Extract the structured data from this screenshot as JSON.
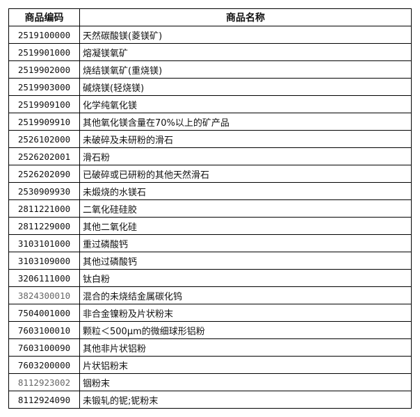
{
  "headers": [
    "商品编码",
    "商品名称"
  ],
  "rows": [
    {
      "code": "2519100000",
      "name": "天然碳酸镁(菱镁矿)"
    },
    {
      "code": "2519901000",
      "name": "熔凝镁氧矿"
    },
    {
      "code": "2519902000",
      "name": "烧结镁氧矿(重烧镁)"
    },
    {
      "code": "2519903000",
      "name": "碱烧镁(轻烧镁)"
    },
    {
      "code": "2519909100",
      "name": "化学纯氧化镁"
    },
    {
      "code": "2519909910",
      "name": "其他氧化镁含量在70%以上的矿产品"
    },
    {
      "code": "2526102000",
      "name": "未破碎及未研粉的滑石"
    },
    {
      "code": "2526202001",
      "name": "滑石粉"
    },
    {
      "code": "2526202090",
      "name": "已破碎或已研粉的其他天然滑石"
    },
    {
      "code": "2530909930",
      "name": "未煅烧的水镁石"
    },
    {
      "code": "2811221000",
      "name": "二氧化硅硅胶"
    },
    {
      "code": "2811229000",
      "name": "其他二氧化硅"
    },
    {
      "code": "3103101000",
      "name": "重过磷酸钙"
    },
    {
      "code": "3103109000",
      "name": "其他过磷酸钙"
    },
    {
      "code": "3206111000",
      "name": "钛白粉"
    },
    {
      "code": "3824300010",
      "name": "混合的未烧结金属碳化钨",
      "gray": true
    },
    {
      "code": "7504001000",
      "name": "非合金镍粉及片状粉末"
    },
    {
      "code": "7603100010",
      "name": "颗粒＜500μm的微细球形铝粉"
    },
    {
      "code": "7603100090",
      "name": "其他非片状铝粉"
    },
    {
      "code": "7603200000",
      "name": "片状铝粉末"
    },
    {
      "code": "8112923002",
      "name": "铟粉末",
      "gray": true
    },
    {
      "code": "8112924090",
      "name": "未锻轧的铌;铌粉末"
    }
  ]
}
